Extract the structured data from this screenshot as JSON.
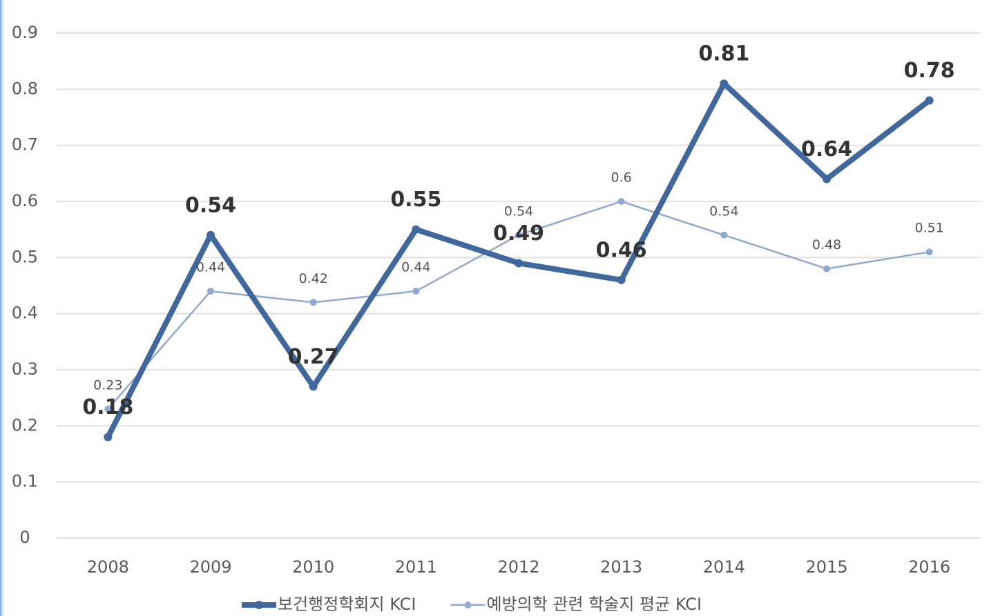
{
  "chart_data": {
    "type": "line",
    "categories": [
      "2008",
      "2009",
      "2010",
      "2011",
      "2012",
      "2013",
      "2014",
      "2015",
      "2016"
    ],
    "series": [
      {
        "name": "보건행정학회지 KCI",
        "color": "#41689e",
        "values": [
          0.18,
          0.54,
          0.27,
          0.55,
          0.49,
          0.46,
          0.81,
          0.64,
          0.78
        ]
      },
      {
        "name": "예방의학 관련 학술지 평균 KCI",
        "color": "#8fa9d3",
        "values": [
          0.23,
          0.44,
          0.42,
          0.44,
          0.54,
          0.6,
          0.54,
          0.48,
          0.51
        ]
      }
    ],
    "ylim": [
      0,
      0.9
    ],
    "yticks": [
      0,
      0.1,
      0.2,
      0.3,
      0.4,
      0.5,
      0.6,
      0.7,
      0.8,
      0.9
    ],
    "grid": true,
    "legend": "bottom"
  }
}
